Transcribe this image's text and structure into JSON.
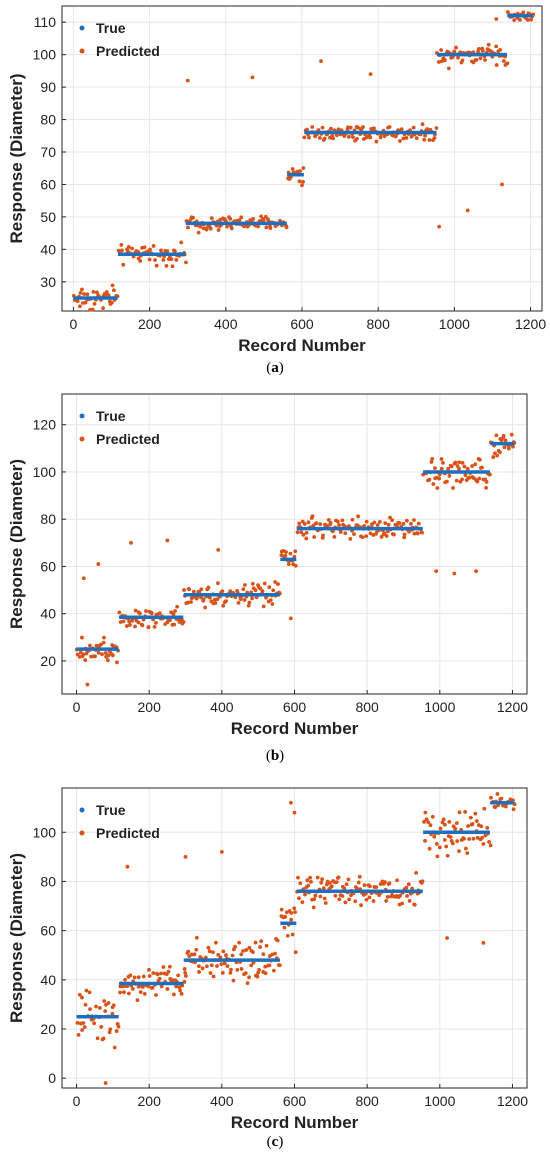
{
  "colors": {
    "true_series": "#1f6fbf",
    "predicted_series": "#d95319",
    "grid": "#e6e6e6",
    "axis": "#262626"
  },
  "chart_data": [
    {
      "type": "scatter",
      "caption": "(a)",
      "caption_letter": "a",
      "xlabel": "Record Number",
      "ylabel": "Response (Diameter)",
      "xlim": [
        -30,
        1230
      ],
      "ylim": [
        21,
        115
      ],
      "xticks": [
        0,
        200,
        400,
        600,
        800,
        1000,
        1200
      ],
      "yticks": [
        30,
        40,
        50,
        60,
        70,
        80,
        90,
        100,
        110
      ],
      "grid": true,
      "legend_position": "top-left",
      "legend": [
        "True",
        "Predicted"
      ],
      "true_segments": [
        {
          "x0": 0,
          "x1": 116,
          "y": 25
        },
        {
          "x0": 117,
          "x1": 294,
          "y": 38.5
        },
        {
          "x0": 295,
          "x1": 560,
          "y": 48
        },
        {
          "x0": 561,
          "x1": 605,
          "y": 63
        },
        {
          "x0": 606,
          "x1": 953,
          "y": 76
        },
        {
          "x0": 954,
          "x1": 1138,
          "y": 100
        },
        {
          "x0": 1139,
          "x1": 1205,
          "y": 112
        }
      ],
      "predicted_spread": [
        6,
        4,
        3.5,
        5,
        3.5,
        5,
        2.5
      ],
      "predicted_outliers": [
        [
          300,
          92
        ],
        [
          470,
          93
        ],
        [
          960,
          47
        ],
        [
          1035,
          52
        ],
        [
          1125,
          60
        ],
        [
          650,
          98
        ],
        [
          780,
          94
        ],
        [
          1110,
          111
        ]
      ]
    },
    {
      "type": "scatter",
      "caption": "(b)",
      "caption_letter": "b",
      "xlabel": "Record Number",
      "ylabel": "Response (Diameter)",
      "xlim": [
        -40,
        1240
      ],
      "ylim": [
        6,
        133
      ],
      "xticks": [
        0,
        200,
        400,
        600,
        800,
        1000,
        1200
      ],
      "yticks": [
        20,
        40,
        60,
        80,
        100,
        120
      ],
      "grid": true,
      "legend_position": "top-left",
      "legend": [
        "True",
        "Predicted"
      ],
      "true_segments": [
        {
          "x0": 0,
          "x1": 116,
          "y": 25
        },
        {
          "x0": 117,
          "x1": 294,
          "y": 38.5
        },
        {
          "x0": 295,
          "x1": 560,
          "y": 48
        },
        {
          "x0": 561,
          "x1": 605,
          "y": 63
        },
        {
          "x0": 606,
          "x1": 953,
          "y": 76
        },
        {
          "x0": 954,
          "x1": 1138,
          "y": 100
        },
        {
          "x0": 1139,
          "x1": 1205,
          "y": 112
        }
      ],
      "predicted_spread": [
        8,
        7,
        7,
        6,
        7,
        9,
        8
      ],
      "predicted_outliers": [
        [
          20,
          55
        ],
        [
          60,
          61
        ],
        [
          150,
          70
        ],
        [
          250,
          71
        ],
        [
          390,
          67
        ],
        [
          990,
          58
        ],
        [
          1040,
          57
        ],
        [
          1100,
          58
        ],
        [
          30,
          10
        ],
        [
          590,
          38
        ]
      ]
    },
    {
      "type": "scatter",
      "caption": "(c)",
      "caption_letter": "c",
      "xlabel": "Record Number",
      "ylabel": "Response (Diameter)",
      "xlim": [
        -40,
        1240
      ],
      "ylim": [
        -4,
        118
      ],
      "xticks": [
        0,
        200,
        400,
        600,
        800,
        1000,
        1200
      ],
      "yticks": [
        0,
        20,
        40,
        60,
        80,
        100
      ],
      "grid": true,
      "legend_position": "top-left",
      "legend": [
        "True",
        "Predicted"
      ],
      "true_segments": [
        {
          "x0": 0,
          "x1": 116,
          "y": 25
        },
        {
          "x0": 117,
          "x1": 294,
          "y": 38.5
        },
        {
          "x0": 295,
          "x1": 560,
          "y": 48
        },
        {
          "x0": 561,
          "x1": 605,
          "y": 63
        },
        {
          "x0": 606,
          "x1": 953,
          "y": 76
        },
        {
          "x0": 954,
          "x1": 1138,
          "y": 100
        },
        {
          "x0": 1139,
          "x1": 1205,
          "y": 112
        }
      ],
      "predicted_spread": [
        16,
        10,
        12,
        18,
        9,
        14,
        6
      ],
      "predicted_outliers": [
        [
          590,
          112
        ],
        [
          600,
          108
        ],
        [
          400,
          92
        ],
        [
          300,
          90
        ],
        [
          140,
          86
        ],
        [
          1020,
          57
        ],
        [
          1120,
          55
        ],
        [
          80,
          -2
        ]
      ]
    }
  ]
}
